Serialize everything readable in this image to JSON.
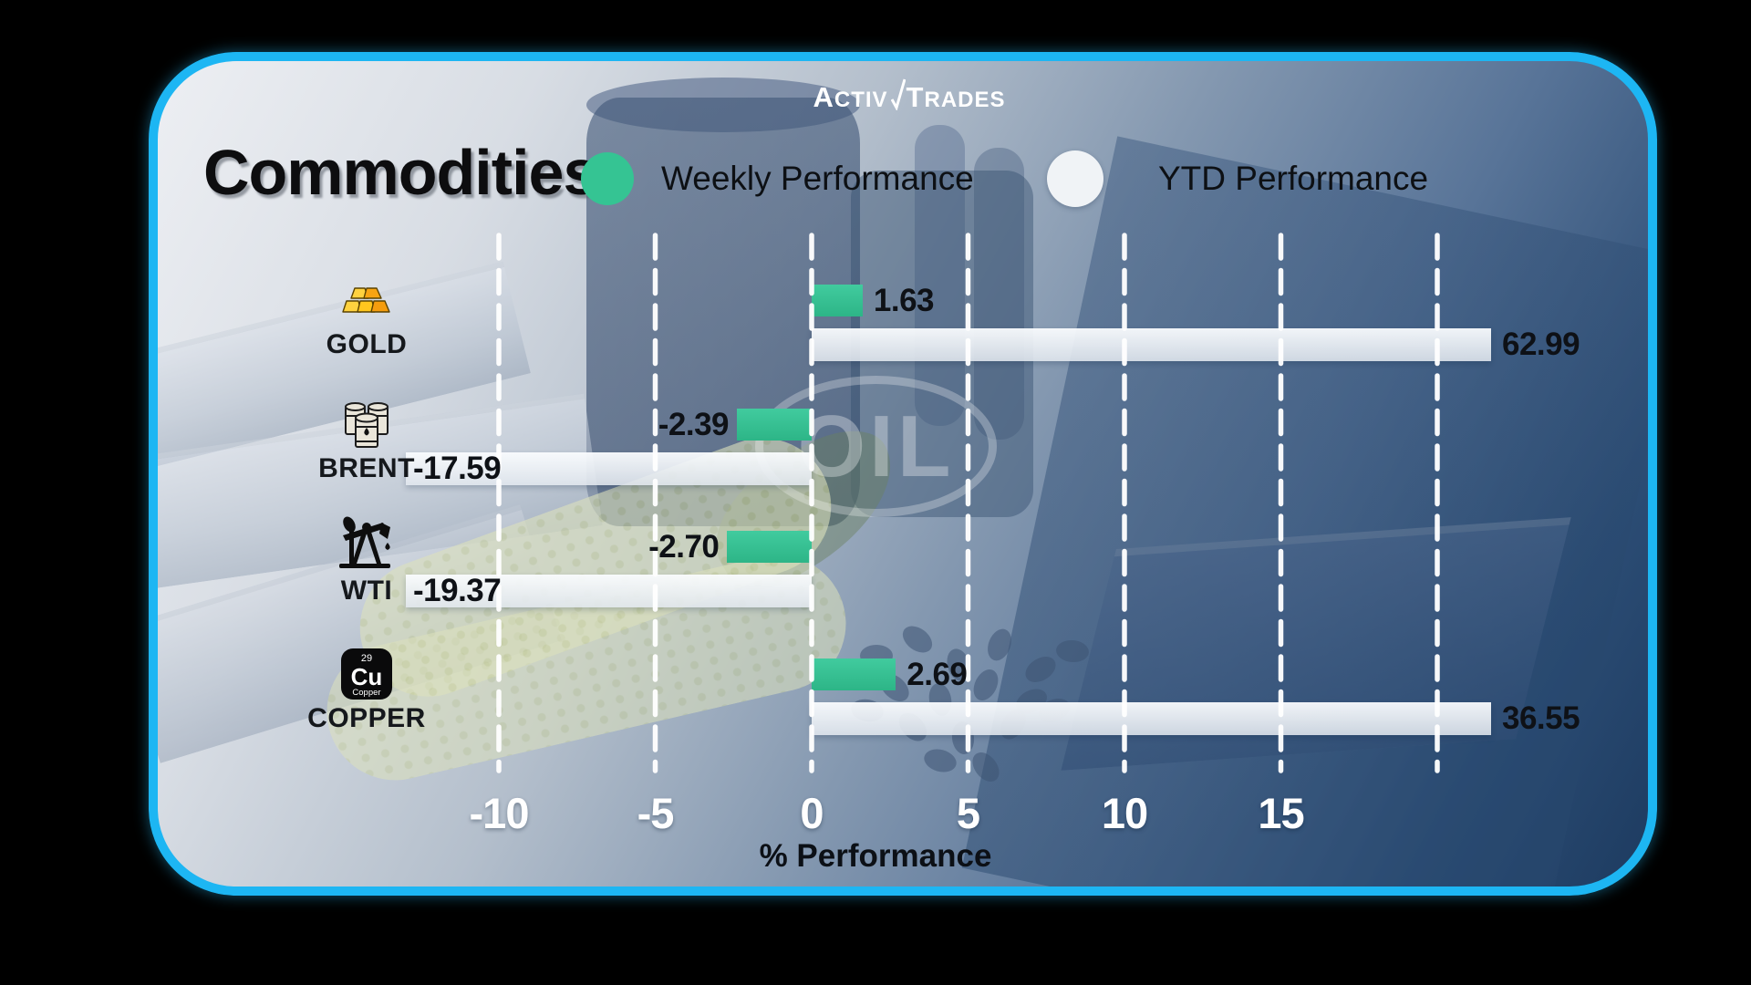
{
  "colors": {
    "frame_border": "#1db6f3",
    "weekly_green": "#35c493",
    "ytd_white": "#f0f3f6",
    "axis_tick_text": "#ffffff",
    "value_text": "#0e1116"
  },
  "brand": {
    "part1": "ACTIV",
    "part2": "TRADES"
  },
  "header": {
    "title": "Commodities",
    "legend_weekly": "Weekly Performance",
    "legend_ytd": "YTD Performance"
  },
  "background": {
    "watermark": "OIL"
  },
  "chart_data": {
    "type": "bar",
    "orientation": "horizontal",
    "title": "Commodities",
    "categories": [
      "GOLD",
      "BRENT",
      "WTI",
      "COPPER"
    ],
    "series": [
      {
        "name": "Weekly Performance",
        "color": "#35c493",
        "values": [
          1.63,
          -2.39,
          -2.7,
          2.69
        ]
      },
      {
        "name": "YTD Performance",
        "color": "#f0f3f6",
        "values": [
          62.99,
          -17.59,
          -19.37,
          36.55
        ]
      }
    ],
    "value_labels": {
      "weekly": [
        "1.63",
        "-2.39",
        "-2.70",
        "2.69"
      ],
      "ytd": [
        "62.99",
        "-17.59",
        "-19.37",
        "36.55"
      ]
    },
    "xlabel": "% Performance",
    "x_ticks": [
      -10,
      -5,
      0,
      5,
      10,
      15
    ],
    "x_gridlines": [
      -10,
      -5,
      0,
      5,
      10,
      15,
      20
    ],
    "plot_value_window": [
      -12.9,
      21.7
    ],
    "grid": "dashed-vertical-white",
    "legend_position": "top",
    "bars_clipped_at_plot_edges": true
  },
  "icons": {
    "gold": "gold-bars-icon",
    "brent": "oil-barrels-icon",
    "wti": "pumpjack-icon",
    "copper": {
      "name": "copper-element-icon",
      "number": "29",
      "symbol": "Cu",
      "element": "Copper"
    }
  }
}
